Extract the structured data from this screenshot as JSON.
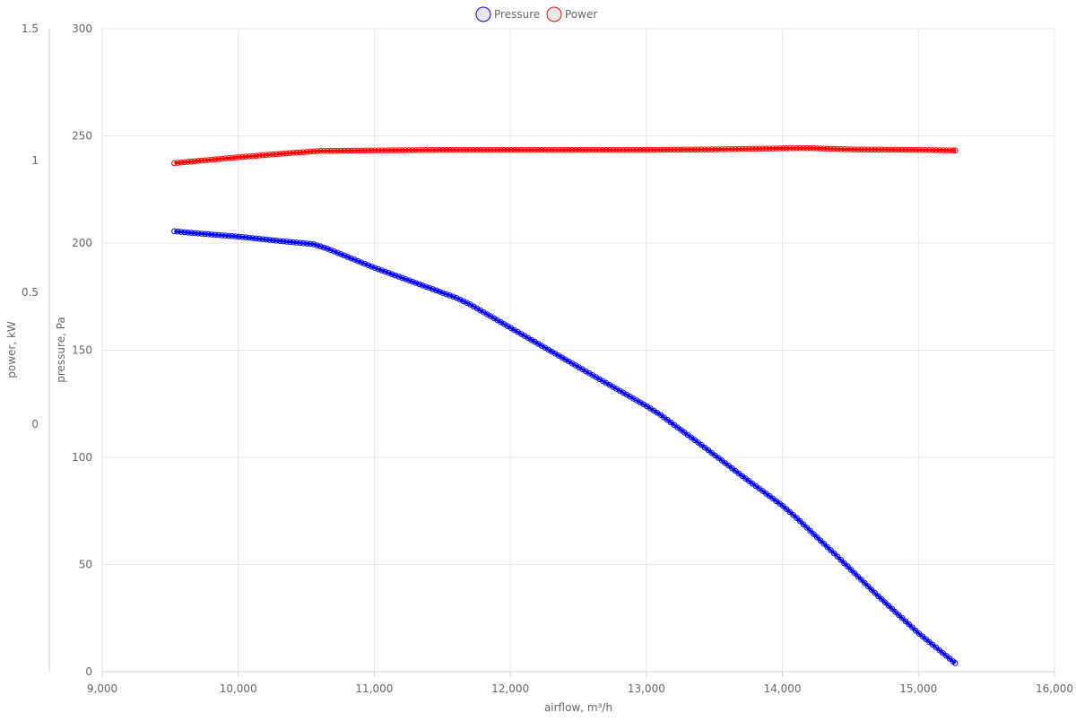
{
  "chart_data": {
    "type": "line",
    "title": "",
    "xlabel": "airflow, m³/h",
    "y_left_outer_label": "power, kW",
    "y_left_inner_label": "pressure, Pa",
    "x_range": [
      9000,
      16000
    ],
    "x_ticks": [
      9000,
      10000,
      11000,
      12000,
      13000,
      14000,
      15000,
      16000
    ],
    "x_tick_labels": [
      "9,000",
      "10,000",
      "11,000",
      "12,000",
      "13,000",
      "14,000",
      "15,000",
      "16,000"
    ],
    "pressure_axis": {
      "range": [
        0,
        300
      ],
      "ticks": [
        0,
        50,
        100,
        150,
        200,
        250,
        300
      ],
      "tick_labels": [
        "0",
        "50",
        "100",
        "150",
        "200",
        "250",
        "300"
      ]
    },
    "power_axis": {
      "range": [
        -0.94,
        1.5
      ],
      "ticks": [
        0,
        0.5,
        1,
        1.5
      ],
      "tick_labels": [
        "0",
        "0.5",
        "1",
        "1.5"
      ]
    },
    "legend": {
      "position": "top-center",
      "items": [
        {
          "name": "Pressure",
          "color": "#0000ff"
        },
        {
          "name": "Power",
          "color": "#ff0000"
        }
      ]
    },
    "series": [
      {
        "name": "Pressure",
        "axis": "pressure",
        "color": "#0000ff",
        "points": [
          [
            9530,
            205.5
          ],
          [
            9700,
            204.5
          ],
          [
            10000,
            203
          ],
          [
            10300,
            201
          ],
          [
            10550,
            199.5
          ],
          [
            10650,
            197.5
          ],
          [
            11000,
            188.5
          ],
          [
            11300,
            181.5
          ],
          [
            11600,
            174.5
          ],
          [
            11700,
            171.5
          ],
          [
            12000,
            160.5
          ],
          [
            12300,
            149.5
          ],
          [
            12600,
            138.5
          ],
          [
            13000,
            124
          ],
          [
            13100,
            120
          ],
          [
            13400,
            106
          ],
          [
            13700,
            91.5
          ],
          [
            14000,
            77.5
          ],
          [
            14100,
            72
          ],
          [
            14400,
            54
          ],
          [
            14700,
            35.5
          ],
          [
            15000,
            18
          ],
          [
            15270,
            4
          ]
        ]
      },
      {
        "name": "Power",
        "axis": "power",
        "color": "#ff0000",
        "points": [
          [
            9530,
            0.99
          ],
          [
            9700,
            0.998
          ],
          [
            10000,
            1.012
          ],
          [
            10300,
            1.025
          ],
          [
            10600,
            1.036
          ],
          [
            11000,
            1.038
          ],
          [
            11500,
            1.04
          ],
          [
            12000,
            1.04
          ],
          [
            12500,
            1.04
          ],
          [
            13000,
            1.04
          ],
          [
            13500,
            1.042
          ],
          [
            14000,
            1.046
          ],
          [
            14200,
            1.047
          ],
          [
            14500,
            1.042
          ],
          [
            15000,
            1.04
          ],
          [
            15270,
            1.038
          ]
        ]
      }
    ]
  }
}
